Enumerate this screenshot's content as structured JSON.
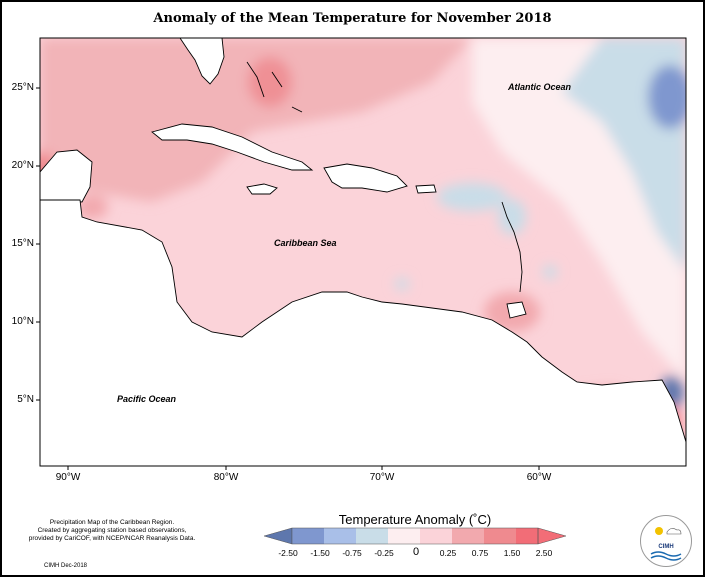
{
  "title": "Anomaly of the Mean Temperature for November 2018",
  "map": {
    "lat_labels": [
      "25°N",
      "20°N",
      "15°N",
      "10°N",
      "5°N"
    ],
    "lon_labels": [
      "90°W",
      "80°W",
      "70°W",
      "60°W"
    ],
    "ocean_labels": {
      "atlantic": "Atlantic Ocean",
      "caribbean": "Caribbean Sea",
      "pacific": "Pacific Ocean"
    }
  },
  "legend": {
    "title": "Temperature Anomaly (˚C)",
    "ticks": [
      "-2.50",
      "-1.50",
      "-0.75",
      "-0.25",
      "0",
      "0.25",
      "0.75",
      "1.50",
      "2.50"
    ],
    "colors": [
      "#5e77ad",
      "#7f97cf",
      "#a9bfe8",
      "#c9dde8",
      "#fdeef0",
      "#fbd3d9",
      "#f2a9ae",
      "#ef8a8f",
      "#f26d77"
    ]
  },
  "credits": {
    "lines": [
      "Precipitation Map of the Caribbean Region.",
      "Created by aggregating station based observations,",
      "provided by CariCOF, with NCEP/NCAR Reanalysis Data."
    ],
    "date": "CIMH Dec-2018"
  },
  "logo": {
    "text": "CIMH"
  }
}
